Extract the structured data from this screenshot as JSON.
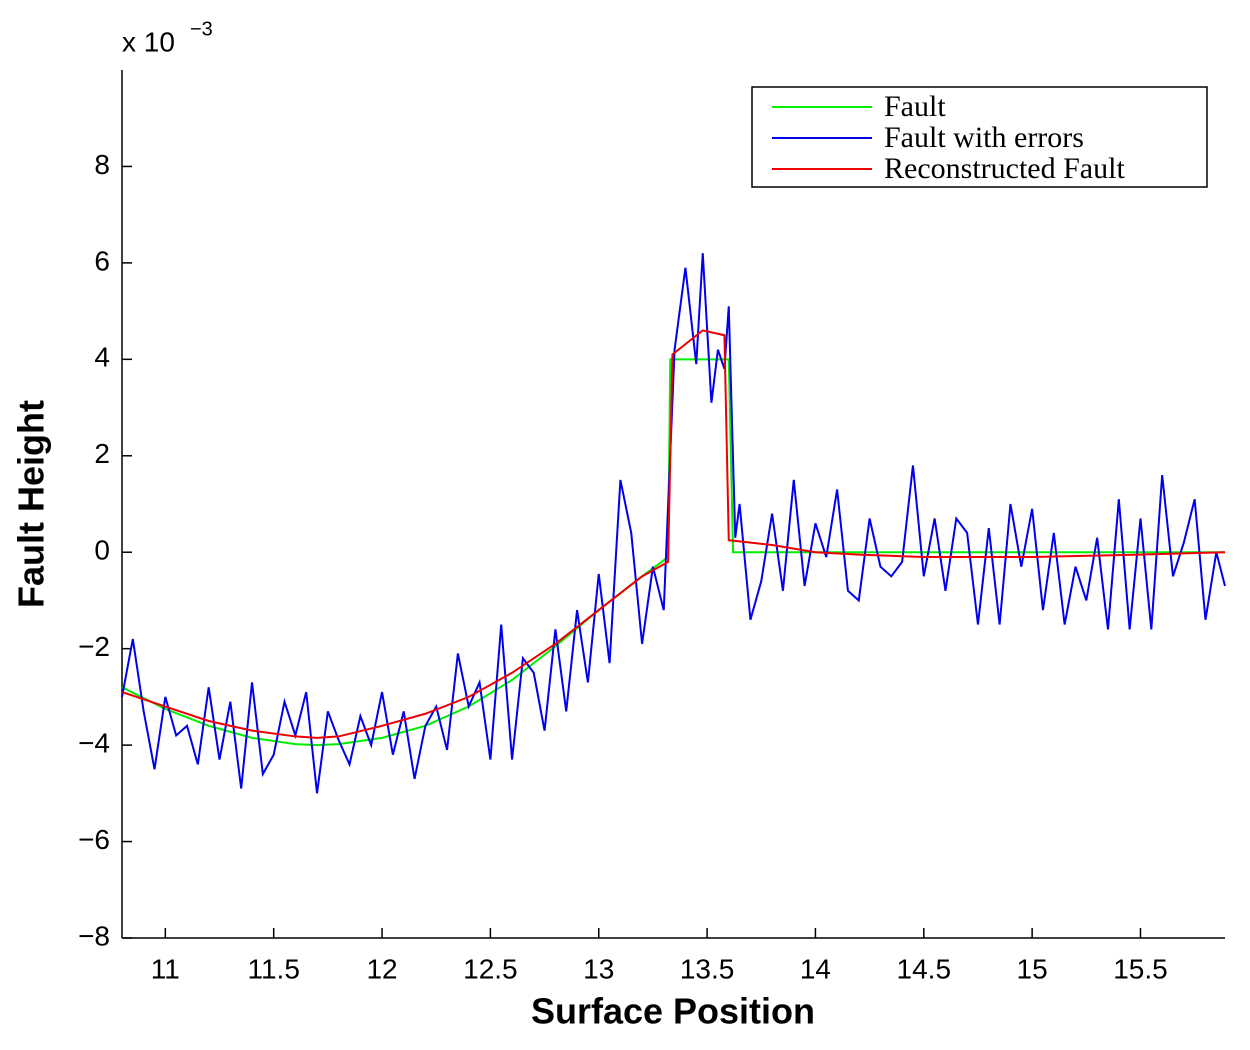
{
  "chart_data": {
    "type": "line",
    "xlabel": "Surface Position",
    "ylabel": "Fault Height",
    "y_scale_label": "x 10",
    "y_scale_exponent": "−3",
    "xlim": [
      10.8,
      15.89
    ],
    "ylim": [
      -8,
      10
    ],
    "xticks": [
      11,
      11.5,
      12,
      12.5,
      13,
      13.5,
      14,
      14.5,
      15,
      15.5
    ],
    "yticks": [
      {
        "value": -8,
        "label": "−8"
      },
      {
        "value": -6,
        "label": "−6"
      },
      {
        "value": -4,
        "label": "−4"
      },
      {
        "value": -2,
        "label": "−2"
      },
      0,
      2,
      4,
      6,
      8
    ],
    "grid": false,
    "legend": "upper right",
    "series": [
      {
        "name": "Fault",
        "color": "#00ee00",
        "x": [
          10.8,
          11.0,
          11.2,
          11.4,
          11.6,
          11.7,
          11.8,
          12.0,
          12.2,
          12.4,
          12.6,
          12.8,
          13.0,
          13.2,
          13.32,
          13.33,
          13.6,
          13.62,
          15.89
        ],
        "values": [
          -2.8,
          -3.25,
          -3.6,
          -3.85,
          -3.98,
          -4.0,
          -3.98,
          -3.85,
          -3.6,
          -3.2,
          -2.65,
          -1.95,
          -1.2,
          -0.5,
          -0.1,
          4,
          4,
          0,
          0
        ]
      },
      {
        "name": "Fault with errors",
        "color": "#0000ee",
        "x": [
          10.8,
          10.85,
          10.9,
          10.95,
          11.0,
          11.05,
          11.1,
          11.15,
          11.2,
          11.25,
          11.3,
          11.35,
          11.4,
          11.45,
          11.5,
          11.55,
          11.6,
          11.65,
          11.7,
          11.75,
          11.8,
          11.85,
          11.9,
          11.95,
          12.0,
          12.05,
          12.1,
          12.15,
          12.2,
          12.25,
          12.3,
          12.35,
          12.4,
          12.45,
          12.5,
          12.55,
          12.6,
          12.65,
          12.7,
          12.75,
          12.8,
          12.85,
          12.9,
          12.95,
          13.0,
          13.05,
          13.1,
          13.15,
          13.2,
          13.25,
          13.3,
          13.35,
          13.4,
          13.45,
          13.48,
          13.52,
          13.55,
          13.58,
          13.6,
          13.63,
          13.65,
          13.7,
          13.75,
          13.8,
          13.85,
          13.9,
          13.95,
          14.0,
          14.05,
          14.1,
          14.15,
          14.2,
          14.25,
          14.3,
          14.35,
          14.4,
          14.45,
          14.5,
          14.55,
          14.6,
          14.65,
          14.7,
          14.75,
          14.8,
          14.85,
          14.9,
          14.95,
          15.0,
          15.05,
          15.1,
          15.15,
          15.2,
          15.25,
          15.3,
          15.35,
          15.4,
          15.45,
          15.5,
          15.55,
          15.6,
          15.65,
          15.7,
          15.75,
          15.8,
          15.85,
          15.89
        ],
        "values": [
          -3.0,
          -1.8,
          -3.3,
          -4.5,
          -3.0,
          -3.8,
          -3.6,
          -4.4,
          -2.8,
          -4.3,
          -3.1,
          -4.9,
          -2.7,
          -4.6,
          -4.2,
          -3.1,
          -3.8,
          -2.9,
          -5.0,
          -3.3,
          -3.9,
          -4.4,
          -3.4,
          -4.0,
          -2.9,
          -4.2,
          -3.3,
          -4.7,
          -3.6,
          -3.2,
          -4.1,
          -2.1,
          -3.2,
          -2.7,
          -4.3,
          -1.5,
          -4.3,
          -2.2,
          -2.5,
          -3.7,
          -1.6,
          -3.3,
          -1.2,
          -2.7,
          -0.45,
          -2.3,
          1.5,
          0.4,
          -1.9,
          -0.3,
          -1.2,
          4.2,
          5.9,
          3.9,
          6.2,
          3.1,
          4.2,
          3.8,
          5.1,
          0.3,
          1.0,
          -1.4,
          -0.6,
          0.8,
          -0.8,
          1.5,
          -0.7,
          0.6,
          -0.1,
          1.3,
          -0.8,
          -1.0,
          0.7,
          -0.3,
          -0.5,
          -0.2,
          1.8,
          -0.5,
          0.7,
          -0.8,
          0.7,
          0.4,
          -1.5,
          0.5,
          -1.5,
          1.0,
          -0.3,
          0.9,
          -1.2,
          0.4,
          -1.5,
          -0.3,
          -1.0,
          0.3,
          -1.6,
          1.1,
          -1.6,
          0.7,
          -1.6,
          1.6,
          -0.5,
          0.2,
          1.1,
          -1.4,
          0.0,
          -0.7
        ]
      },
      {
        "name": "Reconstructed Fault",
        "color": "#ee0000",
        "x": [
          10.8,
          11.0,
          11.2,
          11.4,
          11.6,
          11.7,
          11.8,
          12.0,
          12.2,
          12.4,
          12.6,
          12.8,
          13.0,
          13.2,
          13.32,
          13.34,
          13.48,
          13.58,
          13.6,
          13.8,
          14.0,
          14.2,
          14.5,
          15.0,
          15.5,
          15.89
        ],
        "values": [
          -2.9,
          -3.2,
          -3.5,
          -3.7,
          -3.82,
          -3.85,
          -3.82,
          -3.6,
          -3.35,
          -3.0,
          -2.5,
          -1.9,
          -1.2,
          -0.5,
          -0.2,
          4.1,
          4.6,
          4.5,
          0.25,
          0.15,
          0,
          -0.05,
          -0.1,
          -0.1,
          -0.05,
          0
        ]
      }
    ]
  }
}
